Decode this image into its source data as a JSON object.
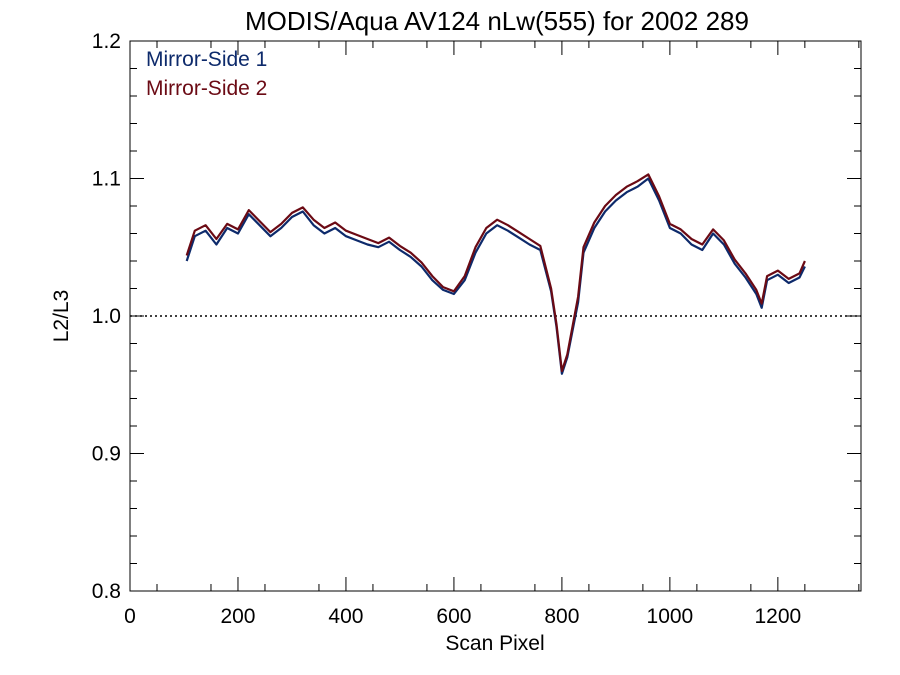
{
  "chart_data": {
    "type": "line",
    "title": "MODIS/Aqua AV124 nLw(555) for 2002 289",
    "xlabel": "Scan Pixel",
    "ylabel": "L2/L3",
    "xlim": [
      0,
      1354
    ],
    "ylim": [
      0.8,
      1.2
    ],
    "xticks": [
      0,
      200,
      400,
      600,
      800,
      1000,
      1200
    ],
    "yticks": [
      0.8,
      0.9,
      1.0,
      1.1,
      1.2
    ],
    "xtick_labels": [
      "0",
      "200",
      "400",
      "600",
      "800",
      "1000",
      "1200"
    ],
    "ytick_labels": [
      "0.8",
      "0.9",
      "1.0",
      "1.1",
      "1.2"
    ],
    "reference_line": {
      "y": 1.0,
      "style": "dotted"
    },
    "grid": false,
    "legend_position": "top-left",
    "x": [
      105,
      120,
      140,
      160,
      180,
      200,
      220,
      240,
      260,
      280,
      300,
      320,
      340,
      360,
      380,
      400,
      420,
      440,
      460,
      480,
      500,
      520,
      540,
      560,
      580,
      600,
      620,
      640,
      660,
      680,
      700,
      720,
      740,
      760,
      780,
      790,
      800,
      810,
      820,
      830,
      840,
      860,
      880,
      900,
      920,
      940,
      960,
      980,
      1000,
      1020,
      1040,
      1060,
      1080,
      1100,
      1120,
      1140,
      1160,
      1170,
      1180,
      1200,
      1220,
      1240,
      1250
    ],
    "series": [
      {
        "name": "Mirror-Side 1",
        "color": "#0d2a6b",
        "values": [
          1.04,
          1.058,
          1.062,
          1.052,
          1.064,
          1.06,
          1.074,
          1.066,
          1.058,
          1.064,
          1.072,
          1.076,
          1.066,
          1.06,
          1.064,
          1.058,
          1.055,
          1.052,
          1.05,
          1.054,
          1.048,
          1.043,
          1.036,
          1.026,
          1.019,
          1.016,
          1.026,
          1.046,
          1.06,
          1.066,
          1.062,
          1.057,
          1.052,
          1.048,
          1.018,
          0.992,
          0.958,
          0.97,
          0.99,
          1.01,
          1.046,
          1.064,
          1.076,
          1.084,
          1.09,
          1.094,
          1.1,
          1.084,
          1.064,
          1.06,
          1.052,
          1.048,
          1.06,
          1.052,
          1.038,
          1.028,
          1.016,
          1.006,
          1.026,
          1.03,
          1.024,
          1.028,
          1.036
        ]
      },
      {
        "name": "Mirror-Side 2",
        "color": "#6b0a14",
        "values": [
          1.044,
          1.062,
          1.066,
          1.056,
          1.067,
          1.063,
          1.077,
          1.069,
          1.061,
          1.067,
          1.075,
          1.079,
          1.07,
          1.064,
          1.068,
          1.062,
          1.059,
          1.056,
          1.053,
          1.057,
          1.051,
          1.046,
          1.039,
          1.029,
          1.021,
          1.018,
          1.029,
          1.05,
          1.064,
          1.07,
          1.066,
          1.061,
          1.056,
          1.051,
          1.02,
          0.994,
          0.96,
          0.972,
          0.993,
          1.014,
          1.05,
          1.068,
          1.08,
          1.088,
          1.094,
          1.098,
          1.103,
          1.087,
          1.067,
          1.063,
          1.056,
          1.052,
          1.063,
          1.055,
          1.041,
          1.031,
          1.019,
          1.009,
          1.029,
          1.033,
          1.027,
          1.031,
          1.04
        ]
      }
    ]
  }
}
